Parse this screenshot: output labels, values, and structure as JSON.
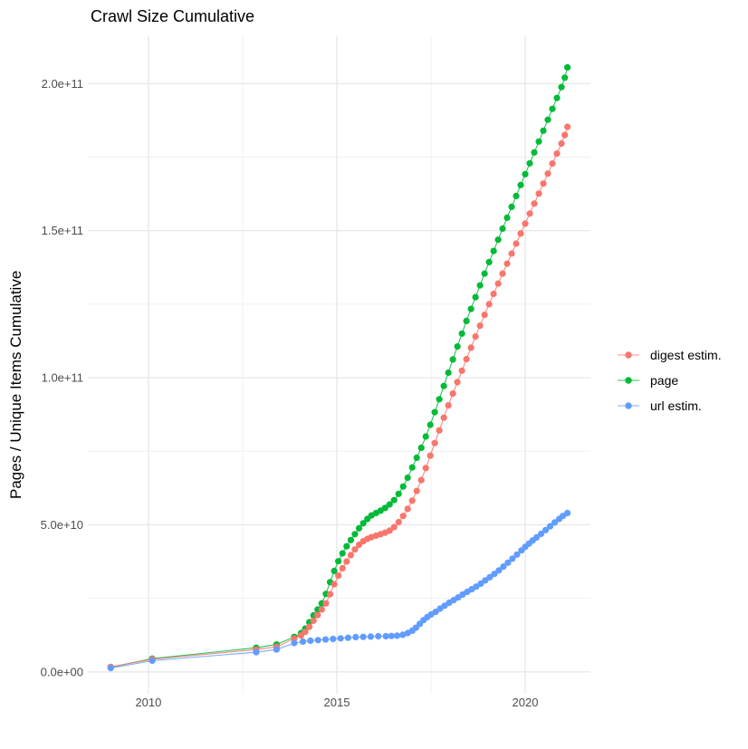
{
  "title": "Crawl Size Cumulative",
  "y_axis_title": "Pages / Unique Items Cumulative",
  "legend": {
    "items": [
      {
        "label": "digest estim.",
        "color": "#F8766D"
      },
      {
        "label": "page",
        "color": "#00BA38"
      },
      {
        "label": "url estim.",
        "color": "#619CFF"
      }
    ]
  },
  "chart_data": {
    "type": "line",
    "title": "Crawl Size Cumulative",
    "xlabel": "",
    "ylabel": "Pages / Unique Items Cumulative",
    "x_unit": "year",
    "y_unit": "pages / unique items (values stored in billions, 1e9)",
    "xlim": [
      2008.44,
      2021.73
    ],
    "ylim_e9": [
      -5.9,
      216.1
    ],
    "grid": true,
    "legend_position": "right",
    "style": {
      "background": "#ffffff",
      "grid_major_color": "#e5e5e5",
      "grid_minor_color": "#f0f0f0",
      "axis_text_color": "#4d4d4d",
      "text_color": "#000000"
    },
    "x_ticks": [
      {
        "value": 2010,
        "label": "2010"
      },
      {
        "value": 2015,
        "label": "2015"
      },
      {
        "value": 2020,
        "label": "2020"
      }
    ],
    "y_ticks": [
      {
        "value_e9": 0,
        "label": "0.0e+00"
      },
      {
        "value_e9": 50,
        "label": "5.0e+10"
      },
      {
        "value_e9": 100,
        "label": "1.0e+11"
      },
      {
        "value_e9": 150,
        "label": "1.5e+11"
      },
      {
        "value_e9": 200,
        "label": "2.0e+11"
      }
    ],
    "x_minor": [
      2012.5,
      2017.5
    ],
    "y_minor_e9": [
      25,
      75,
      125,
      175
    ],
    "series": [
      {
        "id": "page",
        "name": "page",
        "color": "#00BA38",
        "points": [
          [
            2009,
            1.6
          ],
          [
            2010.1,
            4.5
          ],
          [
            2012.86,
            8.2
          ],
          [
            2013.4,
            9.3
          ],
          [
            2013.87,
            11.9
          ],
          [
            2014.05,
            13.2
          ],
          [
            2014.16,
            14.7
          ],
          [
            2014.27,
            16.9
          ],
          [
            2014.38,
            19.2
          ],
          [
            2014.49,
            21.2
          ],
          [
            2014.6,
            23.3
          ],
          [
            2014.71,
            26.5
          ],
          [
            2014.82,
            30.5
          ],
          [
            2014.93,
            34.3
          ],
          [
            2015.04,
            37.6
          ],
          [
            2015.15,
            40.3
          ],
          [
            2015.26,
            42.7
          ],
          [
            2015.37,
            44.8
          ],
          [
            2015.48,
            46.8
          ],
          [
            2015.59,
            48.8
          ],
          [
            2015.7,
            50.5
          ],
          [
            2015.81,
            52
          ],
          [
            2015.92,
            53.2
          ],
          [
            2016.04,
            54
          ],
          [
            2016.16,
            54.8
          ],
          [
            2016.28,
            55.7
          ],
          [
            2016.4,
            56.9
          ],
          [
            2016.52,
            58.4
          ],
          [
            2016.64,
            60.5
          ],
          [
            2016.76,
            63
          ],
          [
            2016.88,
            66
          ],
          [
            2017,
            69.5
          ],
          [
            2017.12,
            72.8
          ],
          [
            2017.24,
            76.2
          ],
          [
            2017.36,
            80
          ],
          [
            2017.48,
            84
          ],
          [
            2017.6,
            88.3
          ],
          [
            2017.72,
            92.7
          ],
          [
            2017.84,
            97.2
          ],
          [
            2017.96,
            101.7
          ],
          [
            2018.08,
            106.2
          ],
          [
            2018.2,
            110.6
          ],
          [
            2018.32,
            115
          ],
          [
            2018.44,
            119.3
          ],
          [
            2018.56,
            123.4
          ],
          [
            2018.68,
            127.4
          ],
          [
            2018.8,
            131.4
          ],
          [
            2018.92,
            135.4
          ],
          [
            2019.04,
            139.3
          ],
          [
            2019.16,
            143.1
          ],
          [
            2019.28,
            146.9
          ],
          [
            2019.4,
            150.7
          ],
          [
            2019.52,
            154.4
          ],
          [
            2019.64,
            158.1
          ],
          [
            2019.76,
            161.8
          ],
          [
            2019.88,
            165.5
          ],
          [
            2020,
            169.2
          ],
          [
            2020.12,
            172.9
          ],
          [
            2020.24,
            176.6
          ],
          [
            2020.36,
            180.3
          ],
          [
            2020.48,
            184
          ],
          [
            2020.6,
            187.7
          ],
          [
            2020.72,
            191.4
          ],
          [
            2020.84,
            195.1
          ],
          [
            2020.96,
            198.8
          ],
          [
            2021.05,
            202
          ],
          [
            2021.12,
            205.5
          ]
        ]
      },
      {
        "id": "digest-estim",
        "name": "digest estim.",
        "color": "#F8766D",
        "points": [
          [
            2009,
            1.7
          ],
          [
            2010.1,
            4.3
          ],
          [
            2012.86,
            7.6
          ],
          [
            2013.4,
            8.5
          ],
          [
            2013.87,
            11.3
          ],
          [
            2014.05,
            12.4
          ],
          [
            2014.16,
            13.6
          ],
          [
            2014.27,
            15.3
          ],
          [
            2014.38,
            17.4
          ],
          [
            2014.49,
            19.3
          ],
          [
            2014.6,
            21.2
          ],
          [
            2014.71,
            23.3
          ],
          [
            2014.82,
            26.4
          ],
          [
            2014.93,
            29.8
          ],
          [
            2015.04,
            32.7
          ],
          [
            2015.15,
            35.2
          ],
          [
            2015.26,
            37.5
          ],
          [
            2015.37,
            39.7
          ],
          [
            2015.48,
            41.6
          ],
          [
            2015.59,
            43.2
          ],
          [
            2015.7,
            44.4
          ],
          [
            2015.81,
            45.2
          ],
          [
            2015.92,
            45.8
          ],
          [
            2016.04,
            46.3
          ],
          [
            2016.16,
            46.8
          ],
          [
            2016.28,
            47.3
          ],
          [
            2016.4,
            48
          ],
          [
            2016.52,
            49.2
          ],
          [
            2016.64,
            50.9
          ],
          [
            2016.76,
            53
          ],
          [
            2016.88,
            55.4
          ],
          [
            2017,
            58.2
          ],
          [
            2017.12,
            61.5
          ],
          [
            2017.24,
            65.2
          ],
          [
            2017.36,
            69.3
          ],
          [
            2017.48,
            73.5
          ],
          [
            2017.6,
            77.8
          ],
          [
            2017.72,
            82.1
          ],
          [
            2017.84,
            86.4
          ],
          [
            2017.96,
            90.6
          ],
          [
            2018.08,
            94.6
          ],
          [
            2018.2,
            98.5
          ],
          [
            2018.32,
            102.4
          ],
          [
            2018.44,
            106.3
          ],
          [
            2018.56,
            110.2
          ],
          [
            2018.68,
            114
          ],
          [
            2018.8,
            117.7
          ],
          [
            2018.92,
            121.4
          ],
          [
            2019.04,
            125
          ],
          [
            2019.16,
            128.5
          ],
          [
            2019.28,
            132
          ],
          [
            2019.4,
            135.4
          ],
          [
            2019.52,
            138.8
          ],
          [
            2019.64,
            142.2
          ],
          [
            2019.76,
            145.6
          ],
          [
            2019.88,
            149
          ],
          [
            2020,
            152.4
          ],
          [
            2020.12,
            155.8
          ],
          [
            2020.24,
            159.2
          ],
          [
            2020.36,
            162.6
          ],
          [
            2020.48,
            166
          ],
          [
            2020.6,
            169.4
          ],
          [
            2020.72,
            172.8
          ],
          [
            2020.84,
            176.2
          ],
          [
            2020.96,
            179.6
          ],
          [
            2021.05,
            182.5
          ],
          [
            2021.12,
            185.3
          ]
        ]
      },
      {
        "id": "url-estim",
        "name": "url estim.",
        "color": "#619CFF",
        "points": [
          [
            2009,
            1.3
          ],
          [
            2010.1,
            3.8
          ],
          [
            2012.86,
            6.7
          ],
          [
            2013.4,
            7.6
          ],
          [
            2013.87,
            9.8
          ],
          [
            2014.1,
            10.3
          ],
          [
            2014.3,
            10.6
          ],
          [
            2014.5,
            10.8
          ],
          [
            2014.7,
            11
          ],
          [
            2014.9,
            11.2
          ],
          [
            2015.1,
            11.4
          ],
          [
            2015.3,
            11.6
          ],
          [
            2015.5,
            11.8
          ],
          [
            2015.7,
            11.9
          ],
          [
            2015.9,
            12
          ],
          [
            2016.1,
            12.1
          ],
          [
            2016.3,
            12.1
          ],
          [
            2016.45,
            12.2
          ],
          [
            2016.6,
            12.3
          ],
          [
            2016.75,
            12.6
          ],
          [
            2016.88,
            13.2
          ],
          [
            2017,
            14
          ],
          [
            2017.1,
            15
          ],
          [
            2017.2,
            16.3
          ],
          [
            2017.3,
            17.6
          ],
          [
            2017.4,
            18.6
          ],
          [
            2017.5,
            19.5
          ],
          [
            2017.62,
            20.4
          ],
          [
            2017.74,
            21.5
          ],
          [
            2017.86,
            22.5
          ],
          [
            2017.98,
            23.5
          ],
          [
            2018.1,
            24.4
          ],
          [
            2018.22,
            25.3
          ],
          [
            2018.34,
            26.3
          ],
          [
            2018.46,
            27.2
          ],
          [
            2018.58,
            28.1
          ],
          [
            2018.7,
            29
          ],
          [
            2018.82,
            30
          ],
          [
            2018.94,
            31.1
          ],
          [
            2019.06,
            32.2
          ],
          [
            2019.18,
            33.3
          ],
          [
            2019.3,
            34.5
          ],
          [
            2019.42,
            35.8
          ],
          [
            2019.54,
            37.1
          ],
          [
            2019.66,
            38.5
          ],
          [
            2019.78,
            39.9
          ],
          [
            2019.9,
            41.3
          ],
          [
            2020,
            42.5
          ],
          [
            2020.1,
            43.6
          ],
          [
            2020.2,
            44.7
          ],
          [
            2020.3,
            45.7
          ],
          [
            2020.42,
            46.9
          ],
          [
            2020.54,
            48.2
          ],
          [
            2020.66,
            49.5
          ],
          [
            2020.78,
            50.8
          ],
          [
            2020.9,
            52
          ],
          [
            2021,
            53
          ],
          [
            2021.12,
            54
          ]
        ]
      }
    ]
  }
}
